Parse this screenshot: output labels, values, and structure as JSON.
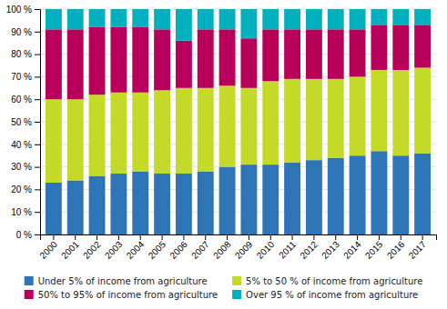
{
  "chart_data": {
    "type": "bar",
    "stacked": true,
    "categories": [
      "2000",
      "2001",
      "2002",
      "2003",
      "2004",
      "2005",
      "2006",
      "2007",
      "2008",
      "2009",
      "2010",
      "2011",
      "2012",
      "2013",
      "2014",
      "2015",
      "2016",
      "2017"
    ],
    "series": [
      {
        "name": "Under 5% of income from agriculture",
        "color": "#2E75B6",
        "values": [
          23,
          24,
          26,
          27,
          28,
          27,
          27,
          28,
          30,
          31,
          31,
          32,
          33,
          34,
          35,
          37,
          35,
          36
        ]
      },
      {
        "name": "5% to 50 % of income from agriculture",
        "color": "#C5D928",
        "values": [
          37,
          36,
          36,
          36,
          35,
          37,
          38,
          37,
          36,
          34,
          37,
          37,
          36,
          35,
          35,
          36,
          38,
          38
        ]
      },
      {
        "name": "50% to 95% of income from agriculture",
        "color": "#B8005A",
        "values": [
          31,
          31,
          30,
          29,
          29,
          27,
          21,
          26,
          25,
          22,
          23,
          22,
          22,
          22,
          21,
          20,
          20,
          19
        ]
      },
      {
        "name": "Over 95 % of income from agriculture",
        "color": "#00B0BE",
        "values": [
          9,
          9,
          8,
          8,
          8,
          9,
          14,
          9,
          9,
          13,
          9,
          9,
          9,
          9,
          9,
          7,
          7,
          7
        ]
      }
    ],
    "ylim": [
      0,
      100
    ],
    "yticks": [
      {
        "value": 0,
        "label": "0 %"
      },
      {
        "value": 10,
        "label": "10 %"
      },
      {
        "value": 20,
        "label": "20 %"
      },
      {
        "value": 30,
        "label": "30 %"
      },
      {
        "value": 40,
        "label": "40 %"
      },
      {
        "value": 50,
        "label": "50 %"
      },
      {
        "value": 60,
        "label": "60 %"
      },
      {
        "value": 70,
        "label": "70 %"
      },
      {
        "value": 80,
        "label": "80 %"
      },
      {
        "value": 90,
        "label": "90 %"
      },
      {
        "value": 100,
        "label": "100 %"
      }
    ],
    "grid": true,
    "legend": "bottom"
  }
}
